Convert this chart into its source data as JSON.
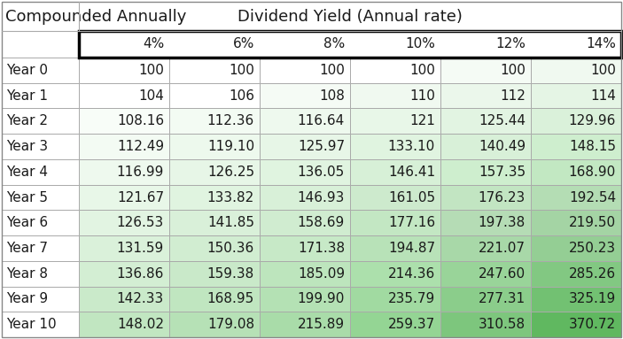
{
  "title_left": "Compounded Annually",
  "title_right": "Dividend Yield (Annual rate)",
  "col_headers": [
    "4%",
    "6%",
    "8%",
    "10%",
    "12%",
    "14%"
  ],
  "row_headers": [
    "Year 0",
    "Year 1",
    "Year 2",
    "Year 3",
    "Year 4",
    "Year 5",
    "Year 6",
    "Year 7",
    "Year 8",
    "Year 9",
    "Year 10"
  ],
  "table_data": [
    [
      100,
      100,
      100,
      100,
      100,
      100
    ],
    [
      104,
      106,
      108,
      110,
      112,
      114
    ],
    [
      108.16,
      112.36,
      116.64,
      121.0,
      125.44,
      129.96
    ],
    [
      112.49,
      119.1,
      125.97,
      133.1,
      140.49,
      148.15
    ],
    [
      116.99,
      126.25,
      136.05,
      146.41,
      157.35,
      168.9
    ],
    [
      121.67,
      133.82,
      146.93,
      161.05,
      176.23,
      192.54
    ],
    [
      126.53,
      141.85,
      158.69,
      177.16,
      197.38,
      219.5
    ],
    [
      131.59,
      150.36,
      171.38,
      194.87,
      221.07,
      250.23
    ],
    [
      136.86,
      159.38,
      185.09,
      214.36,
      247.6,
      285.26
    ],
    [
      142.33,
      168.95,
      199.9,
      235.79,
      277.31,
      325.19
    ],
    [
      148.02,
      179.08,
      215.89,
      259.37,
      310.58,
      370.72
    ]
  ],
  "cell_colors": [
    [
      "#ffffff",
      "#ffffff",
      "#ffffff",
      "#ffffff",
      "#f5fbf5",
      "#f0f9f0"
    ],
    [
      "#ffffff",
      "#ffffff",
      "#f5fbf5",
      "#f0f9f0",
      "#ebf7eb",
      "#e5f5e5"
    ],
    [
      "#f8fdf8",
      "#f3fbf3",
      "#eef9ee",
      "#e8f7e8",
      "#e2f4e2",
      "#daf1da"
    ],
    [
      "#f3fbf3",
      "#edf9ed",
      "#e7f6e7",
      "#e0f4e0",
      "#d8f0d8",
      "#ceeece"
    ],
    [
      "#eef9ee",
      "#e7f6e7",
      "#e0f4e0",
      "#d7f0d7",
      "#ceeece",
      "#c2e8c2"
    ],
    [
      "#e8f7e8",
      "#e0f4e0",
      "#d8f0d8",
      "#cdeacd",
      "#c2e5c2",
      "#b4ddb4"
    ],
    [
      "#e2f4e2",
      "#d9f0d9",
      "#d0ecd0",
      "#c3e7c3",
      "#b5dcb5",
      "#a4d4a4"
    ],
    [
      "#daf1da",
      "#d1edd1",
      "#c7e9c7",
      "#b8e2b8",
      "#a8d8a8",
      "#94ce94"
    ],
    [
      "#d3eed3",
      "#c9e9c9",
      "#bde5bd",
      "#ace0ac",
      "#99d499",
      "#82c882"
    ],
    [
      "#caeaca",
      "#c0e6c0",
      "#b4e1b4",
      "#a1daa1",
      "#8bcd8b",
      "#72c172"
    ],
    [
      "#c1e6c1",
      "#b6e1b6",
      "#a9dca9",
      "#94d594",
      "#7dc67d",
      "#60b860"
    ]
  ],
  "text_color": "#1a1a1a",
  "bg_color": "#ffffff",
  "font_size": 11,
  "header_font_size": 13
}
